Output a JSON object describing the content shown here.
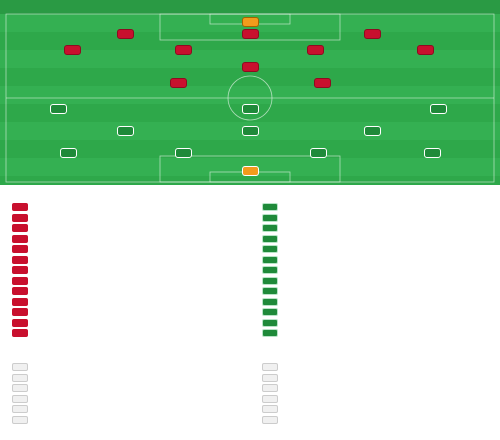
{
  "pitch_header": {
    "title": "",
    "subtitle": "",
    "home": {
      "team": "",
      "formation": ""
    },
    "away": {
      "team": "",
      "formation": ""
    }
  },
  "home_lineup": [],
  "away_lineup": [],
  "subs": {
    "title": "",
    "home": [],
    "away": []
  },
  "coaches": {
    "title": "",
    "home": [],
    "away": []
  },
  "colors": {
    "pitch": "#2ea84a",
    "home": "#c8102e",
    "away": "#1f8a3a",
    "goalkeeper": "#f29b1c"
  }
}
